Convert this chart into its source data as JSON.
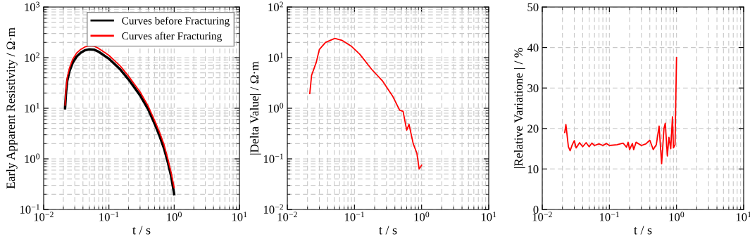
{
  "chart_data": [
    {
      "type": "line",
      "xlabel": "t / s",
      "ylabel": "Early Apparent Resistivity / Ω·m",
      "log": "xy",
      "grid": true,
      "legend": "top right",
      "xlim": [
        0.01,
        10
      ],
      "xticks": [
        {
          "value": 0.01,
          "label": "10$^{−2}$"
        },
        {
          "value": 0.1,
          "label": "10$^{−1}$"
        },
        {
          "value": 1,
          "label": "10$^{0}$"
        },
        {
          "value": 10,
          "label": "10$^{1}$"
        }
      ],
      "ylim": [
        0.1,
        1000
      ],
      "yticks": [
        {
          "value": 0.1,
          "label": "10$^{−1}$"
        },
        {
          "value": 1,
          "label": "10$^{0}$"
        },
        {
          "value": 10,
          "label": "10$^{1}$"
        },
        {
          "value": 100,
          "label": "10$^{2}$"
        },
        {
          "value": 1000,
          "label": "10$^{3}$"
        }
      ],
      "x": [
        0.0213,
        0.022,
        0.023,
        0.025,
        0.028,
        0.032,
        0.037,
        0.043,
        0.05,
        0.06,
        0.07,
        0.1,
        0.15,
        0.2,
        0.3,
        0.4,
        0.5,
        0.6,
        0.7,
        0.8,
        0.9,
        1.0
      ],
      "series": [
        {
          "name": "Curves before Fracturing",
          "color": "#000000",
          "values": [
            10,
            20,
            35,
            55,
            80,
            105,
            125,
            140,
            146,
            143,
            130,
            95,
            58,
            37,
            18,
            9.5,
            5,
            2.8,
            1.6,
            0.85,
            0.45,
            0.2
          ]
        },
        {
          "name": "Curves after Fracturing",
          "color": "#ff0000",
          "values": [
            11.5,
            23,
            41,
            64,
            94,
            123,
            146,
            163,
            170,
            167,
            152,
            111,
            68,
            43,
            21,
            11,
            5.8,
            3.3,
            1.9,
            1.0,
            0.53,
            0.27
          ]
        }
      ]
    },
    {
      "type": "line",
      "xlabel": "t / s",
      "ylabel": "|Delta Value| / Ω·m",
      "log": "xy",
      "grid": true,
      "xlim": [
        0.01,
        10
      ],
      "xticks": [
        {
          "value": 0.01,
          "label": "10$^{−2}$"
        },
        {
          "value": 0.1,
          "label": "10$^{−1}$"
        },
        {
          "value": 1,
          "label": "10$^{0}$"
        },
        {
          "value": 10,
          "label": "10$^{1}$"
        }
      ],
      "ylim": [
        0.01,
        100
      ],
      "yticks": [
        {
          "value": 0.01,
          "label": "10$^{−2}$"
        },
        {
          "value": 0.1,
          "label": "10$^{−1}$"
        },
        {
          "value": 1,
          "label": "10$^{0}$"
        },
        {
          "value": 10,
          "label": "10$^{1}$"
        },
        {
          "value": 100,
          "label": "10$^{2}$"
        }
      ],
      "x": [
        0.0216,
        0.023,
        0.027,
        0.03,
        0.037,
        0.051,
        0.065,
        0.089,
        0.12,
        0.18,
        0.26,
        0.37,
        0.47,
        0.53,
        0.6,
        0.65,
        0.75,
        0.85,
        0.92,
        1.0
      ],
      "series": [
        {
          "color": "#ff0000",
          "values": [
            1.95,
            4.5,
            8.1,
            14.5,
            20,
            24,
            22,
            17,
            11.7,
            5.9,
            3.5,
            1.74,
            0.92,
            0.87,
            0.37,
            0.48,
            0.2,
            0.13,
            0.063,
            0.075
          ]
        }
      ]
    },
    {
      "type": "line",
      "xlabel": "t / s",
      "ylabel": "|Relative Variatione | / %",
      "log": "x",
      "grid": true,
      "xlim": [
        0.01,
        10
      ],
      "xticks": [
        {
          "value": 0.01,
          "label": "10$^{−2}$"
        },
        {
          "value": 0.1,
          "label": "10$^{−1}$"
        },
        {
          "value": 1,
          "label": "10$^{0}$"
        },
        {
          "value": 10,
          "label": "10$^{1}$"
        }
      ],
      "ylim": [
        0,
        50
      ],
      "yticks": [
        0,
        10,
        20,
        30,
        40,
        50
      ],
      "x": [
        0.0216,
        0.0225,
        0.0245,
        0.026,
        0.028,
        0.03,
        0.032,
        0.036,
        0.04,
        0.045,
        0.05,
        0.055,
        0.06,
        0.07,
        0.08,
        0.09,
        0.1,
        0.13,
        0.16,
        0.18,
        0.19,
        0.2,
        0.22,
        0.23,
        0.25,
        0.3,
        0.35,
        0.4,
        0.45,
        0.5,
        0.55,
        0.6,
        0.65,
        0.68,
        0.73,
        0.77,
        0.82,
        0.87,
        0.9,
        0.95,
        1.0
      ],
      "series": [
        {
          "color": "#ff0000",
          "values": [
            19,
            21,
            15.5,
            14.5,
            16,
            17,
            15.2,
            16.5,
            15.5,
            16.5,
            15.5,
            16.4,
            15.8,
            16.2,
            15.8,
            16.3,
            15.8,
            16,
            16.4,
            15.4,
            16.6,
            14.8,
            16.3,
            14.8,
            16.6,
            15.8,
            16.2,
            17.1,
            14.8,
            16,
            20.6,
            11.3,
            20,
            21.3,
            13.2,
            17.8,
            15,
            22.9,
            15.2,
            16,
            37.5
          ]
        }
      ]
    }
  ]
}
